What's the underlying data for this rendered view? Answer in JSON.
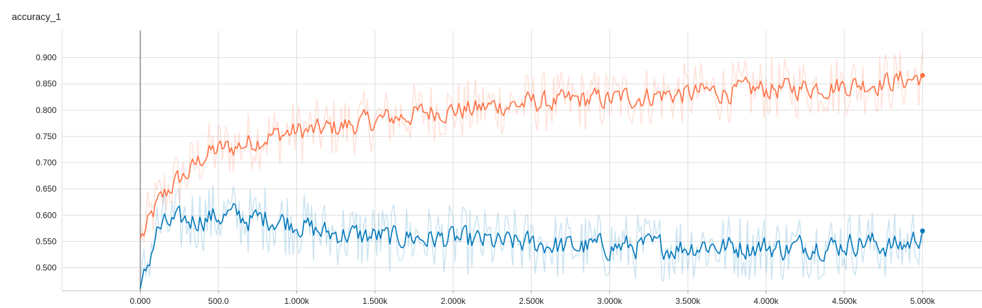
{
  "chart_data": {
    "type": "line",
    "title": "accuracy_1",
    "xlim": [
      -500,
      5380
    ],
    "ylim": [
      0.456,
      0.952
    ],
    "x_ticks": [
      {
        "value": 0,
        "label": "0.000"
      },
      {
        "value": 500,
        "label": "500.0"
      },
      {
        "value": 1000,
        "label": "1.000k"
      },
      {
        "value": 1500,
        "label": "1.500k"
      },
      {
        "value": 2000,
        "label": "2.000k"
      },
      {
        "value": 2500,
        "label": "2.500k"
      },
      {
        "value": 3000,
        "label": "3.000k"
      },
      {
        "value": 3500,
        "label": "3.500k"
      },
      {
        "value": 4000,
        "label": "4.000k"
      },
      {
        "value": 4500,
        "label": "4.500k"
      },
      {
        "value": 5000,
        "label": "5.000k"
      }
    ],
    "y_ticks": [
      {
        "value": 0.5,
        "label": "0.500"
      },
      {
        "value": 0.55,
        "label": "0.550"
      },
      {
        "value": 0.6,
        "label": "0.600"
      },
      {
        "value": 0.65,
        "label": "0.650"
      },
      {
        "value": 0.7,
        "label": "0.700"
      },
      {
        "value": 0.75,
        "label": "0.750"
      },
      {
        "value": 0.8,
        "label": "0.800"
      },
      {
        "value": 0.85,
        "label": "0.850"
      },
      {
        "value": 0.9,
        "label": "0.900"
      }
    ],
    "grid": true,
    "series": [
      {
        "color": "#ff7043",
        "x": [
          0,
          100,
          200,
          300,
          400,
          500,
          600,
          700,
          800,
          900,
          1000,
          1100,
          1200,
          1300,
          1400,
          1500,
          1600,
          1700,
          1800,
          1900,
          2000,
          2100,
          2200,
          2300,
          2400,
          2500,
          2600,
          2700,
          2800,
          2900,
          3000,
          3100,
          3200,
          3300,
          3400,
          3500,
          3600,
          3700,
          3800,
          3900,
          4000,
          4100,
          4200,
          4300,
          4400,
          4500,
          4600,
          4700,
          4800,
          4900,
          5000
        ],
        "y": [
          0.555,
          0.62,
          0.66,
          0.68,
          0.715,
          0.725,
          0.73,
          0.74,
          0.75,
          0.755,
          0.76,
          0.76,
          0.765,
          0.77,
          0.775,
          0.78,
          0.785,
          0.79,
          0.795,
          0.8,
          0.8,
          0.8,
          0.805,
          0.81,
          0.81,
          0.815,
          0.815,
          0.815,
          0.82,
          0.82,
          0.82,
          0.825,
          0.825,
          0.83,
          0.83,
          0.83,
          0.835,
          0.835,
          0.835,
          0.838,
          0.84,
          0.84,
          0.842,
          0.845,
          0.845,
          0.848,
          0.85,
          0.852,
          0.855,
          0.858,
          0.866
        ]
      },
      {
        "color": "#0077bb",
        "x": [
          0,
          100,
          200,
          300,
          400,
          500,
          600,
          700,
          800,
          900,
          1000,
          1100,
          1200,
          1300,
          1400,
          1500,
          1600,
          1700,
          1800,
          1900,
          2000,
          2100,
          2200,
          2300,
          2400,
          2500,
          2600,
          2700,
          2800,
          2900,
          3000,
          3100,
          3200,
          3300,
          3400,
          3500,
          3600,
          3700,
          3800,
          3900,
          4000,
          4100,
          4200,
          4300,
          4400,
          4500,
          4600,
          4700,
          4800,
          4900,
          5000
        ],
        "y": [
          0.46,
          0.575,
          0.585,
          0.59,
          0.595,
          0.598,
          0.6,
          0.59,
          0.595,
          0.59,
          0.585,
          0.57,
          0.565,
          0.565,
          0.56,
          0.56,
          0.555,
          0.56,
          0.555,
          0.555,
          0.555,
          0.55,
          0.55,
          0.545,
          0.548,
          0.545,
          0.545,
          0.54,
          0.54,
          0.54,
          0.54,
          0.54,
          0.54,
          0.54,
          0.538,
          0.54,
          0.545,
          0.54,
          0.54,
          0.54,
          0.54,
          0.535,
          0.54,
          0.545,
          0.54,
          0.545,
          0.55,
          0.545,
          0.54,
          0.545,
          0.57
        ]
      }
    ]
  }
}
